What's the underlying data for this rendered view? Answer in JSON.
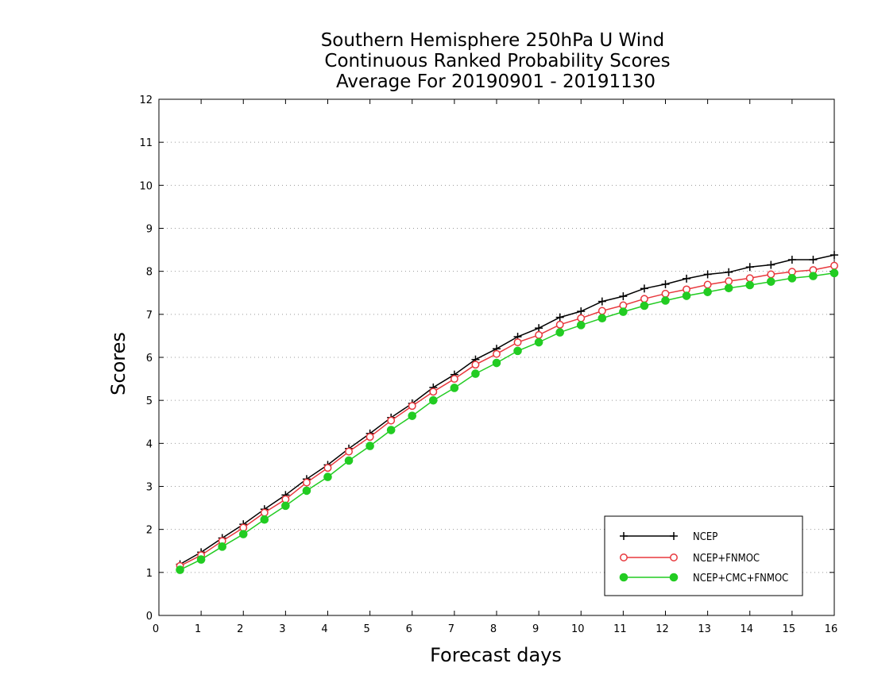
{
  "chart_data": {
    "type": "line",
    "title_lines": [
      "Southern Hemisphere 250hPa U Wind",
      "Continuous Ranked Probability Scores",
      "Average For 20190901 - 20191130"
    ],
    "xlabel": "Forecast days",
    "ylabel": "Scores",
    "xlim": [
      0,
      16
    ],
    "ylim": [
      0,
      12
    ],
    "x_ticks": [
      "0",
      "1",
      "2",
      "3",
      "4",
      "5",
      "6",
      "7",
      "8",
      "9",
      "10",
      "11",
      "12",
      "13",
      "14",
      "15",
      "16"
    ],
    "y_ticks": [
      "0",
      "1",
      "2",
      "3",
      "4",
      "5",
      "6",
      "7",
      "8",
      "9",
      "10",
      "11",
      "12"
    ],
    "grid": "horizontal dotted",
    "legend_position": "bottom-right",
    "x": [
      0.5,
      1,
      1.5,
      2,
      2.5,
      3,
      3.5,
      4,
      4.5,
      5,
      5.5,
      6,
      6.5,
      7,
      7.5,
      8,
      8.5,
      9,
      9.5,
      10,
      10.5,
      11,
      11.5,
      12,
      12.5,
      13,
      13.5,
      14,
      14.5,
      15,
      15.5,
      16
    ],
    "series": [
      {
        "name": "NCEP",
        "color": "#000000",
        "marker": "plus",
        "values": [
          1.19,
          1.47,
          1.8,
          2.12,
          2.47,
          2.8,
          3.17,
          3.5,
          3.88,
          4.23,
          4.6,
          4.93,
          5.3,
          5.6,
          5.95,
          6.2,
          6.48,
          6.68,
          6.93,
          7.07,
          7.3,
          7.42,
          7.6,
          7.7,
          7.83,
          7.93,
          7.98,
          8.1,
          8.15,
          8.27,
          8.27,
          8.38
        ]
      },
      {
        "name": "NCEP+FNMOC",
        "color": "#e8383d",
        "marker": "open-circle",
        "values": [
          1.15,
          1.4,
          1.73,
          2.04,
          2.39,
          2.7,
          3.09,
          3.43,
          3.81,
          4.15,
          4.53,
          4.87,
          5.2,
          5.5,
          5.83,
          6.08,
          6.35,
          6.52,
          6.76,
          6.91,
          7.08,
          7.21,
          7.36,
          7.48,
          7.58,
          7.69,
          7.77,
          7.84,
          7.93,
          7.99,
          8.03,
          8.13
        ]
      },
      {
        "name": "NCEP+CMC+FNMOC",
        "color": "#22cc22",
        "marker": "filled-circle",
        "values": [
          1.06,
          1.3,
          1.6,
          1.89,
          2.23,
          2.55,
          2.9,
          3.22,
          3.6,
          3.94,
          4.31,
          4.64,
          5.0,
          5.29,
          5.62,
          5.87,
          6.15,
          6.35,
          6.58,
          6.75,
          6.91,
          7.06,
          7.2,
          7.32,
          7.43,
          7.52,
          7.61,
          7.68,
          7.76,
          7.84,
          7.89,
          7.96
        ]
      }
    ]
  }
}
